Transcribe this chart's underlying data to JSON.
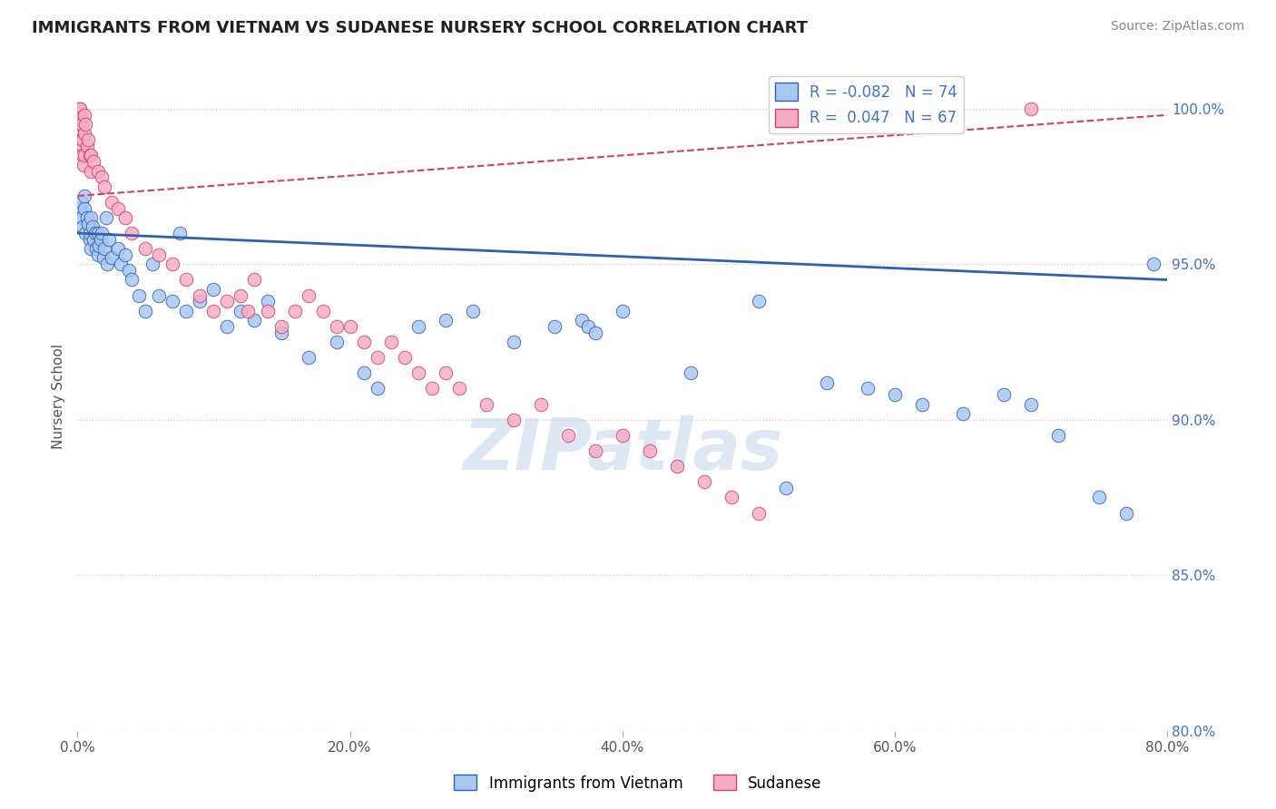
{
  "title": "IMMIGRANTS FROM VIETNAM VS SUDANESE NURSERY SCHOOL CORRELATION CHART",
  "source": "Source: ZipAtlas.com",
  "xlabel_label": "Immigrants from Vietnam",
  "ylabel_label": "Nursery School",
  "legend_label1": "Immigrants from Vietnam",
  "legend_label2": "Sudanese",
  "R1": -0.082,
  "N1": 74,
  "R2": 0.047,
  "N2": 67,
  "color_blue": "#a8c8f0",
  "color_pink": "#f4aec4",
  "color_line_blue": "#3060b0",
  "color_line_pink": "#d04070",
  "xlim": [
    0.0,
    80.0
  ],
  "ylim": [
    80.0,
    101.5
  ],
  "yticks": [
    80.0,
    85.0,
    90.0,
    95.0,
    100.0
  ],
  "xticks": [
    0.0,
    20.0,
    40.0,
    60.0,
    80.0
  ],
  "watermark": "ZIPatlas",
  "blue_x": [
    0.2,
    0.3,
    0.3,
    0.4,
    0.5,
    0.5,
    0.6,
    0.7,
    0.8,
    0.9,
    0.9,
    1.0,
    1.0,
    1.1,
    1.2,
    1.3,
    1.4,
    1.5,
    1.5,
    1.6,
    1.7,
    1.8,
    1.9,
    2.0,
    2.1,
    2.2,
    2.3,
    2.5,
    3.0,
    3.2,
    3.5,
    3.8,
    4.0,
    4.5,
    5.0,
    5.5,
    6.0,
    7.0,
    7.5,
    8.0,
    9.0,
    10.0,
    11.0,
    12.0,
    13.0,
    14.0,
    15.0,
    17.0,
    19.0,
    21.0,
    22.0,
    25.0,
    27.0,
    29.0,
    32.0,
    35.0,
    37.0,
    37.5,
    38.0,
    40.0,
    45.0,
    50.0,
    52.0,
    55.0,
    58.0,
    60.0,
    62.0,
    65.0,
    68.0,
    70.0,
    72.0,
    75.0,
    77.0,
    79.0
  ],
  "blue_y": [
    96.8,
    97.0,
    96.5,
    96.2,
    96.8,
    97.2,
    96.0,
    96.5,
    96.3,
    95.8,
    96.0,
    96.5,
    95.5,
    96.2,
    95.8,
    96.0,
    95.5,
    96.0,
    95.3,
    95.6,
    95.8,
    96.0,
    95.2,
    95.5,
    96.5,
    95.0,
    95.8,
    95.2,
    95.5,
    95.0,
    95.3,
    94.8,
    94.5,
    94.0,
    93.5,
    95.0,
    94.0,
    93.8,
    96.0,
    93.5,
    93.8,
    94.2,
    93.0,
    93.5,
    93.2,
    93.8,
    92.8,
    92.0,
    92.5,
    91.5,
    91.0,
    93.0,
    93.2,
    93.5,
    92.5,
    93.0,
    93.2,
    93.0,
    92.8,
    93.5,
    91.5,
    93.8,
    87.8,
    91.2,
    91.0,
    90.8,
    90.5,
    90.2,
    90.8,
    90.5,
    89.5,
    87.5,
    87.0,
    95.0
  ],
  "pink_x": [
    0.1,
    0.15,
    0.15,
    0.2,
    0.2,
    0.25,
    0.25,
    0.3,
    0.3,
    0.35,
    0.4,
    0.4,
    0.45,
    0.5,
    0.5,
    0.5,
    0.6,
    0.7,
    0.8,
    0.9,
    1.0,
    1.0,
    1.2,
    1.5,
    1.8,
    2.0,
    2.5,
    3.0,
    3.5,
    4.0,
    5.0,
    6.0,
    7.0,
    8.0,
    9.0,
    10.0,
    11.0,
    12.0,
    12.5,
    13.0,
    14.0,
    15.0,
    16.0,
    17.0,
    18.0,
    19.0,
    20.0,
    21.0,
    22.0,
    23.0,
    24.0,
    25.0,
    26.0,
    27.0,
    28.0,
    30.0,
    32.0,
    34.0,
    36.0,
    38.0,
    40.0,
    42.0,
    44.0,
    46.0,
    48.0,
    50.0,
    70.0
  ],
  "pink_y": [
    99.5,
    99.8,
    100.0,
    99.5,
    100.0,
    99.3,
    99.7,
    99.0,
    99.5,
    98.8,
    98.5,
    99.0,
    98.2,
    99.8,
    99.2,
    98.5,
    99.5,
    98.8,
    99.0,
    98.5,
    98.5,
    98.0,
    98.3,
    98.0,
    97.8,
    97.5,
    97.0,
    96.8,
    96.5,
    96.0,
    95.5,
    95.3,
    95.0,
    94.5,
    94.0,
    93.5,
    93.8,
    94.0,
    93.5,
    94.5,
    93.5,
    93.0,
    93.5,
    94.0,
    93.5,
    93.0,
    93.0,
    92.5,
    92.0,
    92.5,
    92.0,
    91.5,
    91.0,
    91.5,
    91.0,
    90.5,
    90.0,
    90.5,
    89.5,
    89.0,
    89.5,
    89.0,
    88.5,
    88.0,
    87.5,
    87.0,
    100.0
  ],
  "blue_line_x": [
    0.0,
    80.0
  ],
  "blue_line_y": [
    96.0,
    94.5
  ],
  "pink_line_x": [
    0.0,
    80.0
  ],
  "pink_line_y": [
    97.2,
    99.8
  ]
}
